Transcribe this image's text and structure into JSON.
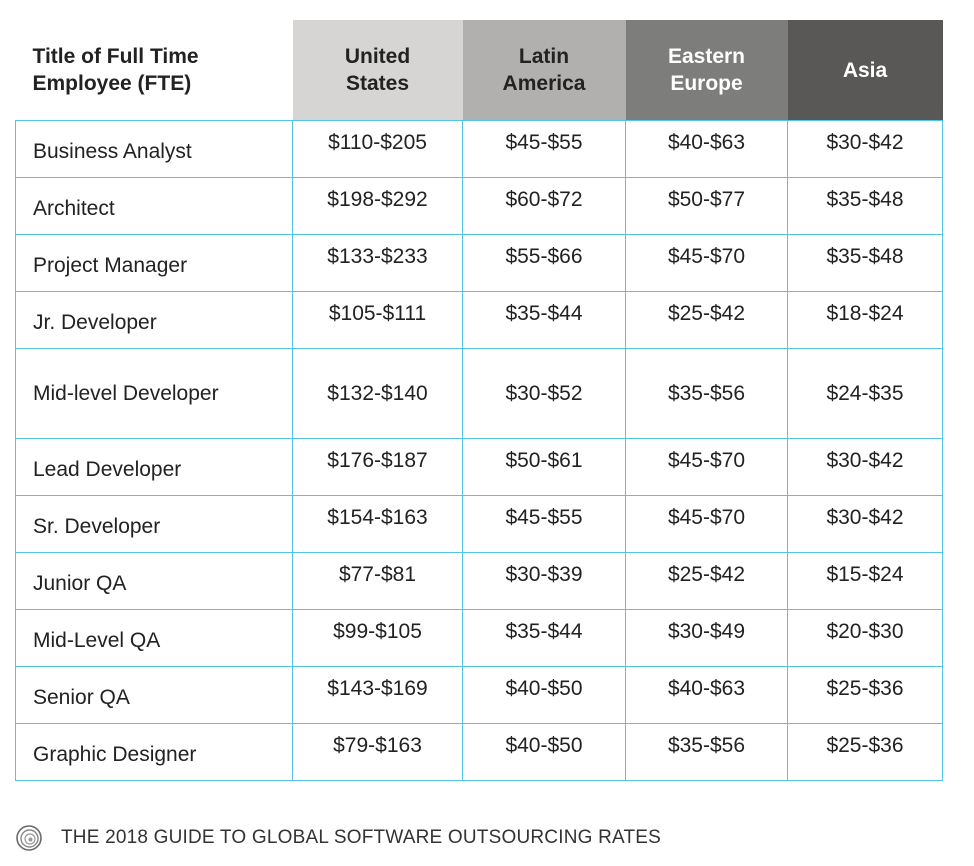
{
  "table": {
    "header": {
      "title_col_line1": "Title of Full Time",
      "title_col_line2": "Employee (FTE)",
      "regions": [
        {
          "line1": "United",
          "line2": "States",
          "bg": "#d6d5d3"
        },
        {
          "line1": "Latin",
          "line2": "America",
          "bg": "#b1b0ae"
        },
        {
          "line1": "Eastern",
          "line2": "Europe",
          "bg": "#7d7d7b"
        },
        {
          "line1": "Asia",
          "line2": "",
          "bg": "#595856"
        }
      ]
    },
    "border_color": "#55c3e5",
    "rows": [
      {
        "title": "Business Analyst",
        "us": "$110-$205",
        "latam": "$45-$55",
        "eeu": "$40-$63",
        "asia": "$30-$42"
      },
      {
        "title": "Architect",
        "us": "$198-$292",
        "latam": "$60-$72",
        "eeu": "$50-$77",
        "asia": "$35-$48"
      },
      {
        "title": "Project Manager",
        "us": "$133-$233",
        "latam": "$55-$66",
        "eeu": "$45-$70",
        "asia": "$35-$48"
      },
      {
        "title": "Jr. Developer",
        "us": "$105-$111",
        "latam": "$35-$44",
        "eeu": "$25-$42",
        "asia": "$18-$24"
      },
      {
        "title": "Mid-level Developer",
        "us": "$132-$140",
        "latam": "$30-$52",
        "eeu": "$35-$56",
        "asia": "$24-$35"
      },
      {
        "title": "Lead Developer",
        "us": "$176-$187",
        "latam": "$50-$61",
        "eeu": "$45-$70",
        "asia": "$30-$42"
      },
      {
        "title": "Sr. Developer",
        "us": "$154-$163",
        "latam": "$45-$55",
        "eeu": "$45-$70",
        "asia": "$30-$42"
      },
      {
        "title": "Junior QA",
        "us": "$77-$81",
        "latam": "$30-$39",
        "eeu": "$25-$42",
        "asia": "$15-$24"
      },
      {
        "title": "Mid-Level QA",
        "us": "$99-$105",
        "latam": "$35-$44",
        "eeu": "$30-$49",
        "asia": "$20-$30"
      },
      {
        "title": "Senior QA",
        "us": "$143-$169",
        "latam": "$40-$50",
        "eeu": "$40-$63",
        "asia": "$25-$36"
      },
      {
        "title": "Graphic Designer",
        "us": "$79-$163",
        "latam": "$40-$50",
        "eeu": "$35-$56",
        "asia": "$25-$36"
      }
    ]
  },
  "footer": {
    "icon": "swirl-logo-icon",
    "text": "THE 2018 GUIDE TO GLOBAL SOFTWARE OUTSOURCING RATES"
  }
}
